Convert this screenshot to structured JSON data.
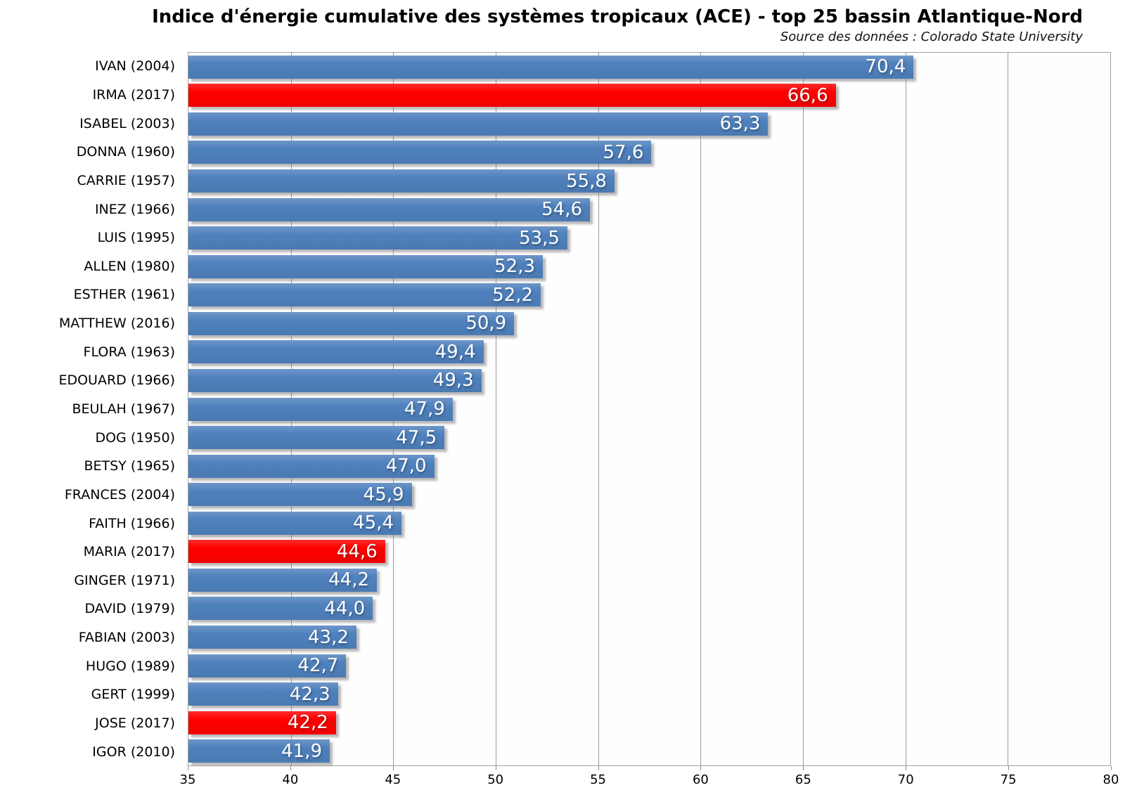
{
  "chart_data": {
    "type": "bar",
    "orientation": "horizontal",
    "title": "Indice d'énergie cumulative des systèmes tropicaux (ACE) - top 25 bassin Atlantique-Nord",
    "subtitle": "Source des données : Colorado State University",
    "xlabel": "",
    "ylabel": "",
    "xlim": [
      35,
      80
    ],
    "xticks": [
      35,
      40,
      45,
      50,
      55,
      60,
      65,
      70,
      75,
      80
    ],
    "grid": true,
    "legend": false,
    "bar_color": "#4f81bd",
    "highlight_color": "#ff0000",
    "value_text_color": "#ffffff",
    "rows": [
      {
        "label": "IVAN (2004)",
        "value": 70.4,
        "display": "70,4",
        "highlight": false
      },
      {
        "label": "IRMA (2017)",
        "value": 66.6,
        "display": "66,6",
        "highlight": true
      },
      {
        "label": "ISABEL (2003)",
        "value": 63.3,
        "display": "63,3",
        "highlight": false
      },
      {
        "label": "DONNA (1960)",
        "value": 57.6,
        "display": "57,6",
        "highlight": false
      },
      {
        "label": "CARRIE (1957)",
        "value": 55.8,
        "display": "55,8",
        "highlight": false
      },
      {
        "label": "INEZ (1966)",
        "value": 54.6,
        "display": "54,6",
        "highlight": false
      },
      {
        "label": "LUIS (1995)",
        "value": 53.5,
        "display": "53,5",
        "highlight": false
      },
      {
        "label": "ALLEN (1980)",
        "value": 52.3,
        "display": "52,3",
        "highlight": false
      },
      {
        "label": "ESTHER (1961)",
        "value": 52.2,
        "display": "52,2",
        "highlight": false
      },
      {
        "label": "MATTHEW (2016)",
        "value": 50.9,
        "display": "50,9",
        "highlight": false
      },
      {
        "label": "FLORA (1963)",
        "value": 49.4,
        "display": "49,4",
        "highlight": false
      },
      {
        "label": "EDOUARD (1966)",
        "value": 49.3,
        "display": "49,3",
        "highlight": false
      },
      {
        "label": "BEULAH (1967)",
        "value": 47.9,
        "display": "47,9",
        "highlight": false
      },
      {
        "label": "DOG (1950)",
        "value": 47.5,
        "display": "47,5",
        "highlight": false
      },
      {
        "label": "BETSY (1965)",
        "value": 47.0,
        "display": "47,0",
        "highlight": false
      },
      {
        "label": "FRANCES (2004)",
        "value": 45.9,
        "display": "45,9",
        "highlight": false
      },
      {
        "label": "FAITH (1966)",
        "value": 45.4,
        "display": "45,4",
        "highlight": false
      },
      {
        "label": "MARIA (2017)",
        "value": 44.6,
        "display": "44,6",
        "highlight": true
      },
      {
        "label": "GINGER (1971)",
        "value": 44.2,
        "display": "44,2",
        "highlight": false
      },
      {
        "label": "DAVID (1979)",
        "value": 44.0,
        "display": "44,0",
        "highlight": false
      },
      {
        "label": "FABIAN (2003)",
        "value": 43.2,
        "display": "43,2",
        "highlight": false
      },
      {
        "label": "HUGO (1989)",
        "value": 42.7,
        "display": "42,7",
        "highlight": false
      },
      {
        "label": "GERT (1999)",
        "value": 42.3,
        "display": "42,3",
        "highlight": false
      },
      {
        "label": "JOSE (2017)",
        "value": 42.2,
        "display": "42,2",
        "highlight": true
      },
      {
        "label": "IGOR (2010)",
        "value": 41.9,
        "display": "41,9",
        "highlight": false
      }
    ]
  }
}
